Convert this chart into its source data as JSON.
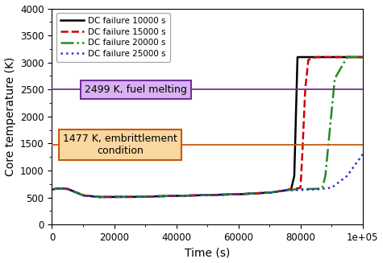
{
  "title": "",
  "xlabel": "Time (s)",
  "ylabel": "Core temperature (K)",
  "xlim": [
    0,
    100000
  ],
  "ylim": [
    0,
    4000
  ],
  "yticks": [
    0,
    500,
    1000,
    1500,
    2000,
    2500,
    3000,
    3500,
    4000
  ],
  "xticks": [
    0,
    20000,
    40000,
    60000,
    80000,
    100000
  ],
  "xtick_labels": [
    "0",
    "20000",
    "40000",
    "60000",
    "80000",
    "1e+05"
  ],
  "fuel_melting_temp": 2499,
  "embrittlement_temp": 1477,
  "fuel_melting_label": "2499 K, fuel melting",
  "embrittlement_label": "1477 K, embrittlement\ncondition",
  "fuel_melting_color": "#7030A0",
  "fuel_melting_face": "#D9B3F0",
  "embrittlement_color": "#C55A11",
  "embrittlement_face": "#FAD7A0",
  "series": [
    {
      "label": "DC failure 10000 s",
      "color": "#000000",
      "linestyle": "-",
      "linewidth": 1.8,
      "t_points": [
        0,
        2000,
        5000,
        10000,
        15000,
        25000,
        40000,
        60000,
        70000,
        75000,
        77000,
        78000,
        78500,
        79000,
        80000,
        85000,
        100000
      ],
      "T_points": [
        650,
        670,
        660,
        540,
        510,
        510,
        530,
        560,
        590,
        630,
        660,
        900,
        2000,
        3100,
        3100,
        3100,
        3100
      ]
    },
    {
      "label": "DC failure 15000 s",
      "color": "#CC0000",
      "linestyle": "--",
      "linewidth": 1.8,
      "t_points": [
        0,
        2000,
        5000,
        10000,
        15000,
        25000,
        40000,
        60000,
        70000,
        75000,
        77000,
        79000,
        80000,
        80500,
        81500,
        82500,
        85000,
        100000
      ],
      "T_points": [
        650,
        670,
        660,
        540,
        510,
        510,
        530,
        560,
        590,
        630,
        660,
        670,
        680,
        1200,
        2500,
        3050,
        3100,
        3100
      ]
    },
    {
      "label": "DC failure 20000 s",
      "color": "#228B22",
      "linestyle": "-.",
      "linewidth": 1.8,
      "t_points": [
        0,
        2000,
        5000,
        10000,
        15000,
        25000,
        40000,
        60000,
        70000,
        75000,
        78000,
        85000,
        87000,
        88000,
        89000,
        91000,
        95000,
        100000
      ],
      "T_points": [
        650,
        670,
        660,
        540,
        510,
        510,
        530,
        560,
        590,
        630,
        650,
        660,
        670,
        900,
        1500,
        2700,
        3100,
        3100
      ]
    },
    {
      "label": "DC failure 25000 s",
      "color": "#3333CC",
      "linestyle": ":",
      "linewidth": 1.8,
      "t_points": [
        0,
        2000,
        5000,
        10000,
        15000,
        25000,
        40000,
        60000,
        70000,
        75000,
        80000,
        85000,
        90000,
        95000,
        100000
      ],
      "T_points": [
        650,
        670,
        660,
        540,
        510,
        510,
        530,
        560,
        590,
        630,
        640,
        650,
        680,
        900,
        1300
      ]
    }
  ],
  "background_color": "#ffffff",
  "figsize": [
    4.75,
    3.27
  ],
  "dpi": 100
}
